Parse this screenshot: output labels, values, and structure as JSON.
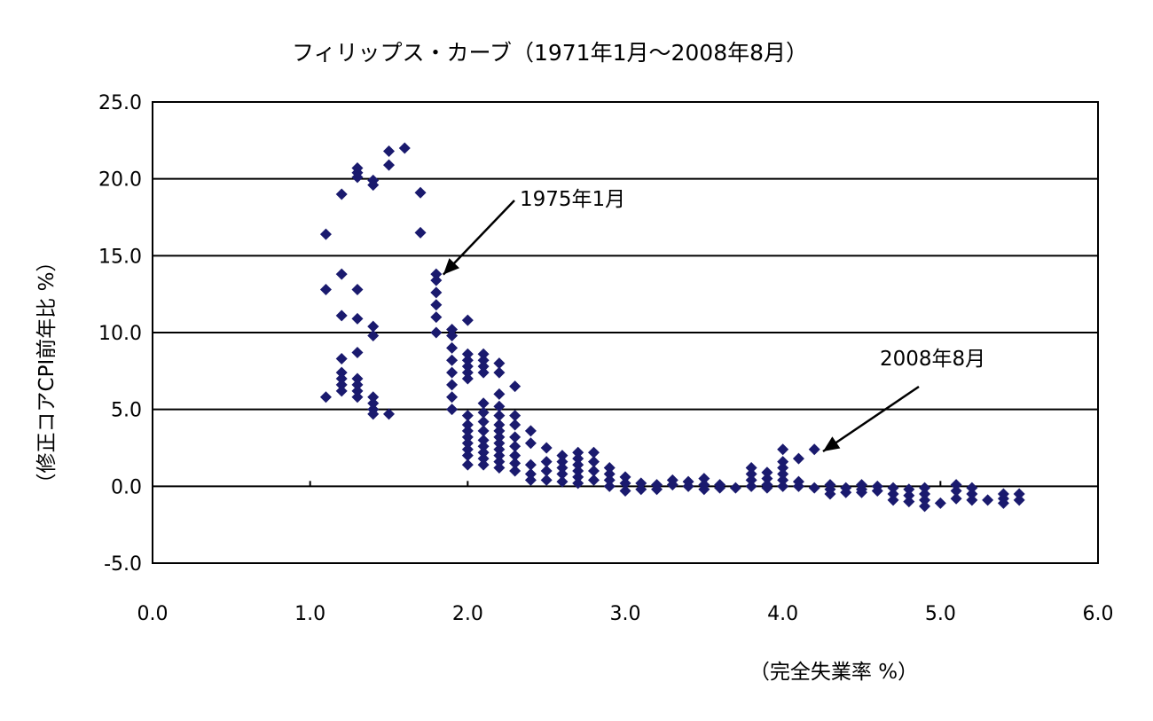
{
  "chart_data": {
    "type": "scatter",
    "title": "フィリップス・カーブ（1971年1月～2008年8月）",
    "xlabel": "（完全失業率 %）",
    "ylabel": "（修正コアCPI前年比 %）",
    "xlim": [
      0,
      6
    ],
    "ylim": [
      -5,
      25
    ],
    "x_ticks": [
      "0.0",
      "1.0",
      "2.0",
      "3.0",
      "4.0",
      "5.0",
      "6.0"
    ],
    "y_ticks": [
      "25.0",
      "20.0",
      "15.0",
      "10.0",
      "5.0",
      "0.0",
      "-5.0"
    ],
    "grid": "horizontal",
    "marker_color": "#1a1a6e",
    "annotations": [
      {
        "text": "1975年1月",
        "x": 1.8,
        "y": 14.0
      },
      {
        "text": "2008年8月",
        "x": 4.3,
        "y": 2.5
      }
    ],
    "points": [
      [
        1.1,
        16.4
      ],
      [
        1.1,
        12.8
      ],
      [
        1.1,
        5.8
      ],
      [
        1.2,
        19.0
      ],
      [
        1.2,
        13.8
      ],
      [
        1.2,
        11.1
      ],
      [
        1.2,
        8.3
      ],
      [
        1.2,
        7.4
      ],
      [
        1.2,
        7.0
      ],
      [
        1.2,
        6.6
      ],
      [
        1.2,
        6.2
      ],
      [
        1.3,
        20.7
      ],
      [
        1.3,
        20.4
      ],
      [
        1.3,
        20.1
      ],
      [
        1.3,
        12.8
      ],
      [
        1.3,
        10.9
      ],
      [
        1.3,
        8.7
      ],
      [
        1.3,
        7.0
      ],
      [
        1.3,
        6.6
      ],
      [
        1.3,
        6.2
      ],
      [
        1.3,
        5.8
      ],
      [
        1.4,
        19.9
      ],
      [
        1.4,
        19.6
      ],
      [
        1.4,
        10.4
      ],
      [
        1.4,
        9.8
      ],
      [
        1.4,
        5.8
      ],
      [
        1.4,
        5.4
      ],
      [
        1.4,
        5.0
      ],
      [
        1.4,
        4.7
      ],
      [
        1.5,
        21.8
      ],
      [
        1.5,
        20.9
      ],
      [
        1.5,
        4.7
      ],
      [
        1.6,
        22.0
      ],
      [
        1.7,
        19.1
      ],
      [
        1.7,
        16.5
      ],
      [
        1.8,
        13.8
      ],
      [
        1.8,
        13.4
      ],
      [
        1.8,
        12.6
      ],
      [
        1.8,
        11.8
      ],
      [
        1.8,
        11.0
      ],
      [
        1.8,
        10.0
      ],
      [
        1.9,
        10.2
      ],
      [
        1.9,
        9.8
      ],
      [
        1.9,
        9.0
      ],
      [
        1.9,
        8.2
      ],
      [
        1.9,
        7.4
      ],
      [
        1.9,
        6.6
      ],
      [
        1.9,
        5.8
      ],
      [
        1.9,
        5.0
      ],
      [
        2.0,
        10.8
      ],
      [
        2.0,
        8.6
      ],
      [
        2.0,
        8.2
      ],
      [
        2.0,
        7.8
      ],
      [
        2.0,
        7.4
      ],
      [
        2.0,
        7.0
      ],
      [
        2.0,
        4.6
      ],
      [
        2.0,
        4.0
      ],
      [
        2.0,
        3.6
      ],
      [
        2.0,
        3.2
      ],
      [
        2.0,
        2.8
      ],
      [
        2.0,
        2.4
      ],
      [
        2.0,
        2.0
      ],
      [
        2.0,
        1.4
      ],
      [
        2.1,
        8.6
      ],
      [
        2.1,
        8.2
      ],
      [
        2.1,
        7.8
      ],
      [
        2.1,
        7.4
      ],
      [
        2.1,
        5.4
      ],
      [
        2.1,
        4.8
      ],
      [
        2.1,
        4.2
      ],
      [
        2.1,
        3.6
      ],
      [
        2.1,
        3.0
      ],
      [
        2.1,
        2.6
      ],
      [
        2.1,
        2.2
      ],
      [
        2.1,
        1.8
      ],
      [
        2.1,
        1.4
      ],
      [
        2.2,
        8.0
      ],
      [
        2.2,
        7.4
      ],
      [
        2.2,
        6.0
      ],
      [
        2.2,
        5.2
      ],
      [
        2.2,
        4.6
      ],
      [
        2.2,
        4.0
      ],
      [
        2.2,
        3.6
      ],
      [
        2.2,
        3.2
      ],
      [
        2.2,
        2.8
      ],
      [
        2.2,
        2.4
      ],
      [
        2.2,
        2.0
      ],
      [
        2.2,
        1.6
      ],
      [
        2.2,
        1.2
      ],
      [
        2.3,
        6.5
      ],
      [
        2.3,
        4.6
      ],
      [
        2.3,
        4.0
      ],
      [
        2.3,
        3.2
      ],
      [
        2.3,
        2.6
      ],
      [
        2.3,
        2.0
      ],
      [
        2.3,
        1.5
      ],
      [
        2.3,
        1.0
      ],
      [
        2.4,
        3.6
      ],
      [
        2.4,
        2.8
      ],
      [
        2.4,
        1.4
      ],
      [
        2.4,
        0.8
      ],
      [
        2.4,
        0.4
      ],
      [
        2.5,
        2.5
      ],
      [
        2.5,
        1.6
      ],
      [
        2.5,
        1.0
      ],
      [
        2.5,
        0.4
      ],
      [
        2.6,
        2.0
      ],
      [
        2.6,
        1.6
      ],
      [
        2.6,
        1.2
      ],
      [
        2.6,
        0.8
      ],
      [
        2.6,
        0.3
      ],
      [
        2.7,
        2.2
      ],
      [
        2.7,
        1.8
      ],
      [
        2.7,
        1.4
      ],
      [
        2.7,
        1.0
      ],
      [
        2.7,
        0.6
      ],
      [
        2.7,
        0.2
      ],
      [
        2.8,
        2.2
      ],
      [
        2.8,
        1.6
      ],
      [
        2.8,
        1.0
      ],
      [
        2.8,
        0.4
      ],
      [
        2.9,
        1.2
      ],
      [
        2.9,
        0.8
      ],
      [
        2.9,
        0.4
      ],
      [
        2.9,
        0.0
      ],
      [
        3.0,
        0.6
      ],
      [
        3.0,
        0.2
      ],
      [
        3.0,
        -0.3
      ],
      [
        3.1,
        0.2
      ],
      [
        3.1,
        -0.2
      ],
      [
        3.2,
        0.1
      ],
      [
        3.2,
        -0.2
      ],
      [
        3.3,
        0.4
      ],
      [
        3.3,
        0.1
      ],
      [
        3.4,
        0.3
      ],
      [
        3.4,
        0.0
      ],
      [
        3.5,
        0.5
      ],
      [
        3.5,
        0.1
      ],
      [
        3.5,
        -0.2
      ],
      [
        3.6,
        0.1
      ],
      [
        3.6,
        -0.1
      ],
      [
        3.7,
        -0.1
      ],
      [
        3.8,
        1.2
      ],
      [
        3.8,
        0.8
      ],
      [
        3.8,
        0.4
      ],
      [
        3.8,
        0.0
      ],
      [
        3.9,
        0.9
      ],
      [
        3.9,
        0.5
      ],
      [
        3.9,
        0.1
      ],
      [
        3.9,
        -0.1
      ],
      [
        4.0,
        2.4
      ],
      [
        4.0,
        1.6
      ],
      [
        4.0,
        1.2
      ],
      [
        4.0,
        0.8
      ],
      [
        4.0,
        0.4
      ],
      [
        4.0,
        0.0
      ],
      [
        4.1,
        1.8
      ],
      [
        4.1,
        0.3
      ],
      [
        4.1,
        0.0
      ],
      [
        4.2,
        2.4
      ],
      [
        4.2,
        -0.1
      ],
      [
        4.3,
        0.1
      ],
      [
        4.3,
        -0.2
      ],
      [
        4.3,
        -0.5
      ],
      [
        4.4,
        -0.1
      ],
      [
        4.4,
        -0.4
      ],
      [
        4.5,
        0.1
      ],
      [
        4.5,
        -0.2
      ],
      [
        4.5,
        -0.4
      ],
      [
        4.6,
        0.0
      ],
      [
        4.6,
        -0.3
      ],
      [
        4.7,
        -0.1
      ],
      [
        4.7,
        -0.5
      ],
      [
        4.7,
        -0.9
      ],
      [
        4.8,
        -0.2
      ],
      [
        4.8,
        -0.6
      ],
      [
        4.8,
        -1.0
      ],
      [
        4.9,
        -0.1
      ],
      [
        4.9,
        -0.5
      ],
      [
        4.9,
        -0.9
      ],
      [
        4.9,
        -1.3
      ],
      [
        5.0,
        -1.1
      ],
      [
        5.1,
        0.1
      ],
      [
        5.1,
        -0.3
      ],
      [
        5.1,
        -0.8
      ],
      [
        5.2,
        -0.1
      ],
      [
        5.2,
        -0.5
      ],
      [
        5.2,
        -0.9
      ],
      [
        5.3,
        -0.9
      ],
      [
        5.4,
        -0.5
      ],
      [
        5.4,
        -0.8
      ],
      [
        5.4,
        -1.1
      ],
      [
        5.5,
        -0.5
      ],
      [
        5.5,
        -0.9
      ]
    ]
  }
}
